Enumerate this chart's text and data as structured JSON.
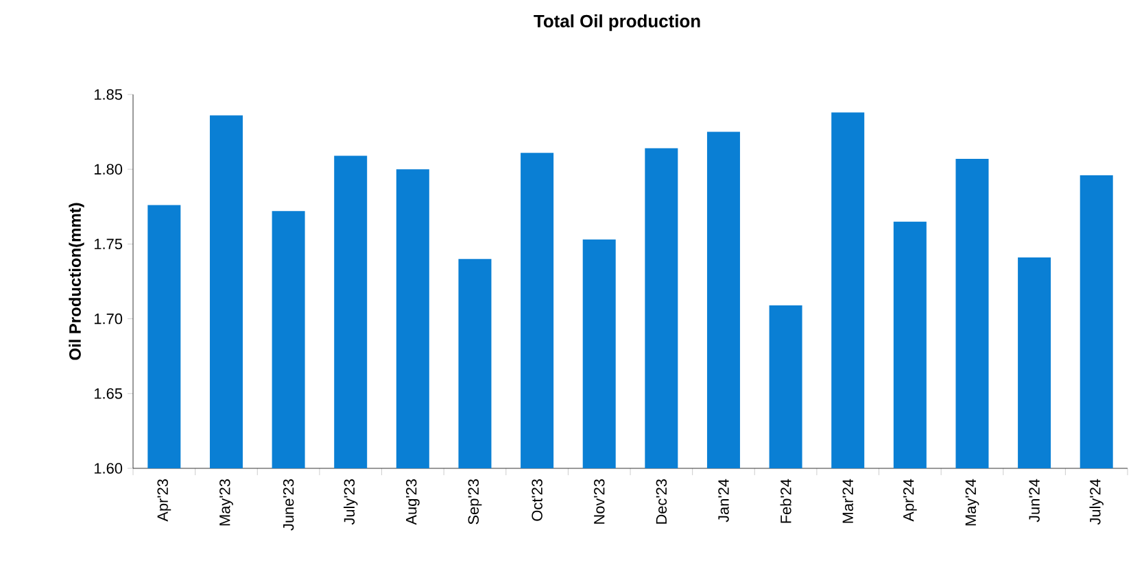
{
  "chart_data": {
    "type": "bar",
    "title": "Total Oil production",
    "ylabel": "Oil Production(mmt)",
    "categories": [
      "Apr'23",
      "May'23",
      "June'23",
      "July'23",
      "Aug'23",
      "Sep'23",
      "Oct'23",
      "Nov'23",
      "Dec'23",
      "Jan'24",
      "Feb'24",
      "Mar'24",
      "Apr'24",
      "May'24",
      "Jun'24",
      "July'24"
    ],
    "values": [
      1.776,
      1.836,
      1.772,
      1.809,
      1.8,
      1.74,
      1.811,
      1.753,
      1.814,
      1.825,
      1.709,
      1.838,
      1.765,
      1.807,
      1.741,
      1.796
    ],
    "color": "#0a7fd4",
    "ylim": [
      1.6,
      1.85
    ],
    "yticks": [
      {
        "value": 1.6,
        "label": "1.60"
      },
      {
        "value": 1.65,
        "label": "1.65"
      },
      {
        "value": 1.7,
        "label": "1.70"
      },
      {
        "value": 1.75,
        "label": "1.75"
      },
      {
        "value": 1.8,
        "label": "1.80"
      },
      {
        "value": 1.85,
        "label": "1.85"
      }
    ]
  }
}
